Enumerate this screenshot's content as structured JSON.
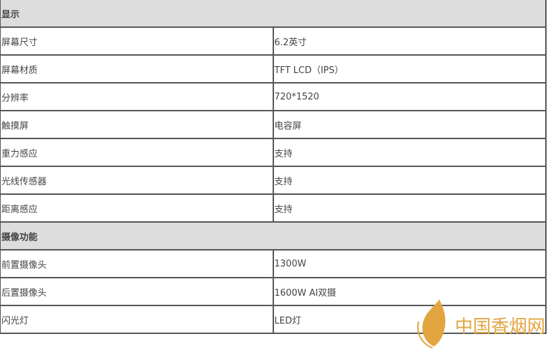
{
  "sections": [
    {
      "title": "显示",
      "rows": [
        {
          "label": "屏幕尺寸",
          "value": "6.2英寸"
        },
        {
          "label": "屏幕材质",
          "value": "TFT LCD（IPS）"
        },
        {
          "label": "分辨率",
          "value": "720*1520"
        },
        {
          "label": "触摸屏",
          "value": "电容屏"
        },
        {
          "label": "重力感应",
          "value": "支持"
        },
        {
          "label": "光线传感器",
          "value": "支持"
        },
        {
          "label": "距离感应",
          "value": "支持"
        }
      ]
    },
    {
      "title": "摄像功能",
      "rows": [
        {
          "label": "前置摄像头",
          "value": "1300W"
        },
        {
          "label": "后置摄像头",
          "value": "1600W AI双摄"
        },
        {
          "label": "闪光灯",
          "value": "LED灯"
        }
      ]
    }
  ],
  "watermark": {
    "text": "中国香烟网",
    "color": "#e2a540"
  }
}
